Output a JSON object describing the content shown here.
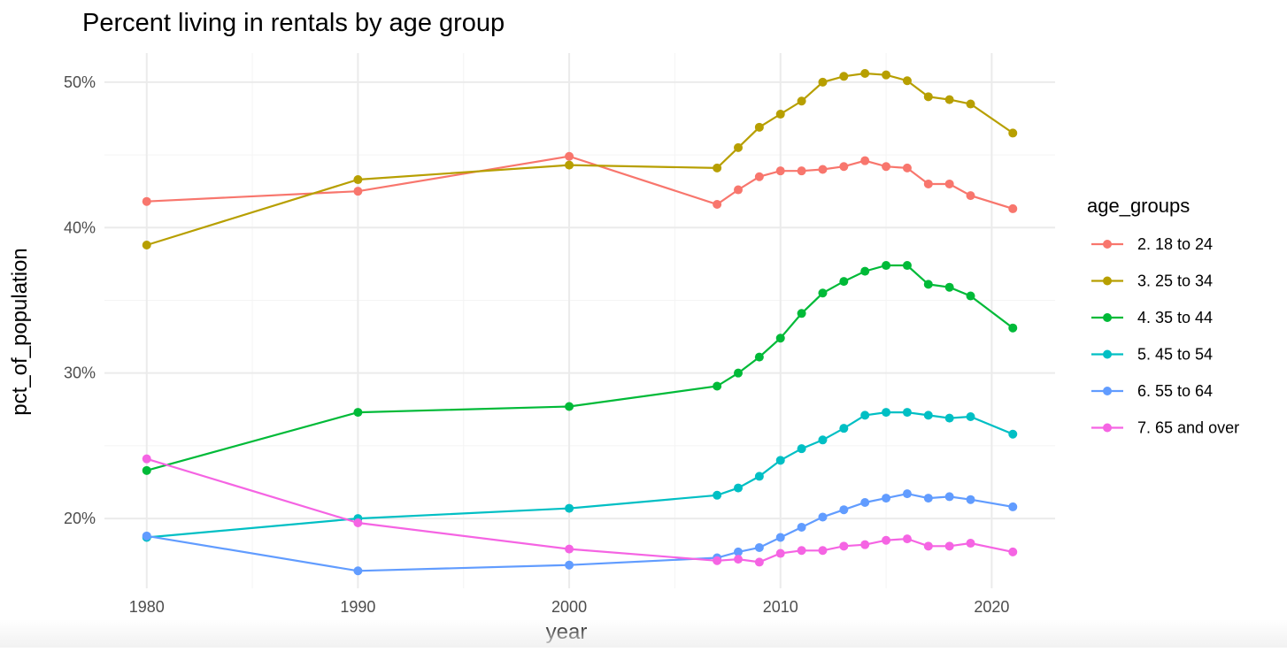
{
  "chart_data": {
    "type": "line",
    "title": "Percent living in rentals by age group",
    "xlabel": "year",
    "ylabel": "pct_of_population",
    "xlim": [
      1978,
      2023
    ],
    "ylim": [
      15.2,
      52
    ],
    "x_ticks": [
      1980,
      1990,
      2000,
      2010,
      2020
    ],
    "y_ticks": [
      20,
      30,
      40,
      50
    ],
    "y_tick_labels": [
      "20%",
      "30%",
      "40%",
      "50%"
    ],
    "grid": true,
    "markers": true,
    "legend_title": "age_groups",
    "legend_position": "right",
    "x": [
      1980,
      1990,
      2000,
      2007,
      2008,
      2009,
      2010,
      2011,
      2012,
      2013,
      2014,
      2015,
      2016,
      2017,
      2018,
      2019,
      2021
    ],
    "series": [
      {
        "name": "2. 18 to 24",
        "color": "#F8766D",
        "values": [
          41.8,
          42.5,
          44.9,
          41.6,
          42.6,
          43.5,
          43.9,
          43.9,
          44.0,
          44.2,
          44.6,
          44.2,
          44.1,
          43.0,
          43.0,
          42.2,
          41.3
        ]
      },
      {
        "name": "3. 25 to 34",
        "color": "#B79F00",
        "values": [
          38.8,
          43.3,
          44.3,
          44.1,
          45.5,
          46.9,
          47.8,
          48.7,
          50.0,
          50.4,
          50.6,
          50.5,
          50.1,
          49.0,
          48.8,
          48.5,
          46.5
        ]
      },
      {
        "name": "4. 35 to 44",
        "color": "#00BA38",
        "values": [
          23.3,
          27.3,
          27.7,
          29.1,
          30.0,
          31.1,
          32.4,
          34.1,
          35.5,
          36.3,
          37.0,
          37.4,
          37.4,
          36.1,
          35.9,
          35.3,
          33.1
        ]
      },
      {
        "name": "5. 45 to 54",
        "color": "#00BFC4",
        "values": [
          18.7,
          20.0,
          20.7,
          21.6,
          22.1,
          22.9,
          24.0,
          24.8,
          25.4,
          26.2,
          27.1,
          27.3,
          27.3,
          27.1,
          26.9,
          27.0,
          25.8
        ]
      },
      {
        "name": "6. 55 to 64",
        "color": "#619CFF",
        "values": [
          18.8,
          16.4,
          16.8,
          17.3,
          17.7,
          18.0,
          18.7,
          19.4,
          20.1,
          20.6,
          21.1,
          21.4,
          21.7,
          21.4,
          21.5,
          21.3,
          20.8
        ]
      },
      {
        "name": "7. 65 and over",
        "color": "#F564E3",
        "values": [
          24.1,
          19.7,
          17.9,
          17.1,
          17.2,
          17.0,
          17.6,
          17.8,
          17.8,
          18.1,
          18.2,
          18.5,
          18.6,
          18.1,
          18.1,
          18.3,
          17.7
        ]
      }
    ]
  }
}
